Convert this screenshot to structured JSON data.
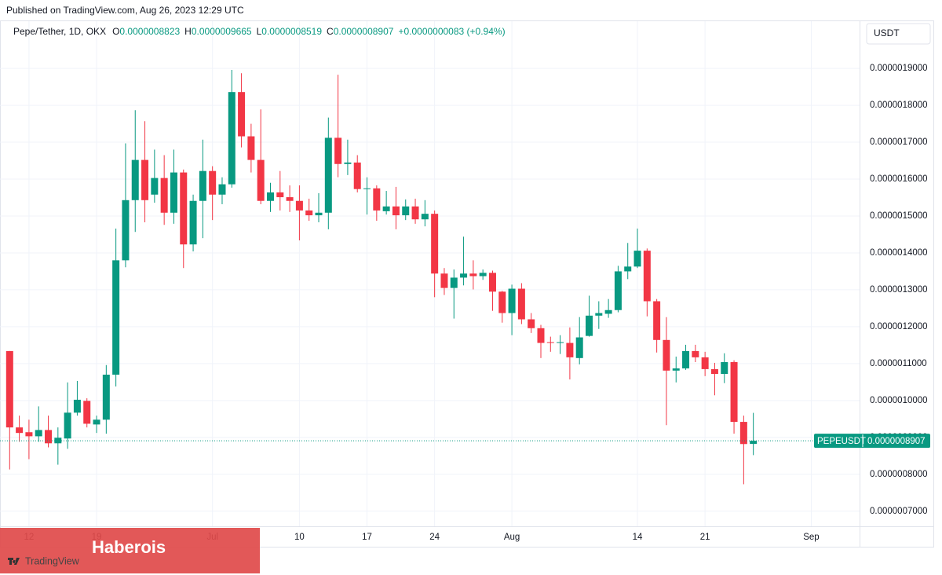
{
  "chart_data": {
    "type": "candlestick",
    "published": "Published on TradingView.com, Aug 26, 2023 12:29 UTC",
    "symbol": "Pepe/Tether, 1D, OKX",
    "ohlc_legend": [
      {
        "key": "O",
        "text": "0.0000008823"
      },
      {
        "key": "H",
        "text": "0.0000009665"
      },
      {
        "key": "L",
        "text": "0.0000008519"
      },
      {
        "key": "C",
        "text": "0.0000008907"
      }
    ],
    "change": "+0.0000000083 (+0.94%)",
    "currency": "USDT",
    "last_price": {
      "symbol": "PEPEUSDT",
      "value": 8.907e-07,
      "label": "0.0000008907"
    },
    "watermark": "Haberois",
    "brand": "TradingView",
    "up_color": "#089981",
    "down_color": "#f23645",
    "grid": true,
    "x": [
      "2023-06-10",
      "2023-06-11",
      "2023-06-12",
      "2023-06-13",
      "2023-06-14",
      "2023-06-15",
      "2023-06-16",
      "2023-06-17",
      "2023-06-18",
      "2023-06-19",
      "2023-06-20",
      "2023-06-21",
      "2023-06-22",
      "2023-06-23",
      "2023-06-24",
      "2023-06-25",
      "2023-06-26",
      "2023-06-27",
      "2023-06-28",
      "2023-06-29",
      "2023-06-30",
      "2023-07-01",
      "2023-07-02",
      "2023-07-03",
      "2023-07-04",
      "2023-07-05",
      "2023-07-06",
      "2023-07-07",
      "2023-07-08",
      "2023-07-09",
      "2023-07-10",
      "2023-07-11",
      "2023-07-12",
      "2023-07-13",
      "2023-07-14",
      "2023-07-15",
      "2023-07-16",
      "2023-07-17",
      "2023-07-18",
      "2023-07-19",
      "2023-07-20",
      "2023-07-21",
      "2023-07-22",
      "2023-07-23",
      "2023-07-24",
      "2023-07-25",
      "2023-07-26",
      "2023-07-27",
      "2023-07-28",
      "2023-07-29",
      "2023-07-30",
      "2023-07-31",
      "2023-08-01",
      "2023-08-02",
      "2023-08-03",
      "2023-08-04",
      "2023-08-05",
      "2023-08-06",
      "2023-08-07",
      "2023-08-08",
      "2023-08-09",
      "2023-08-10",
      "2023-08-11",
      "2023-08-12",
      "2023-08-13",
      "2023-08-14",
      "2023-08-15",
      "2023-08-16",
      "2023-08-17",
      "2023-08-18",
      "2023-08-19",
      "2023-08-20",
      "2023-08-21",
      "2023-08-22",
      "2023-08-23",
      "2023-08-24",
      "2023-08-25",
      "2023-08-26"
    ],
    "open": [
      1.134e-06,
      9.27e-07,
      9.14e-07,
      9.03e-07,
      9.2e-07,
      8.84e-07,
      8.97e-07,
      9.67e-07,
      9.99e-07,
      9.35e-07,
      9.48e-07,
      1.07e-06,
      1.38e-06,
      1.543e-06,
      1.652e-06,
      1.558e-06,
      1.603e-06,
      1.509e-06,
      1.618e-06,
      1.423e-06,
      1.541e-06,
      1.622e-06,
      1.558e-06,
      1.586e-06,
      1.836e-06,
      1.716e-06,
      1.652e-06,
      1.541e-06,
      1.564e-06,
      1.551e-06,
      1.541e-06,
      1.515e-06,
      1.502e-06,
      1.509e-06,
      1.712e-06,
      1.641e-06,
      1.645e-06,
      1.573e-06,
      1.575e-06,
      1.513e-06,
      1.526e-06,
      1.502e-06,
      1.526e-06,
      1.491e-06,
      1.506e-06,
      1.344e-06,
      1.305e-06,
      1.333e-06,
      1.344e-06,
      1.337e-06,
      1.346e-06,
      1.295e-06,
      1.237e-06,
      1.303e-06,
      1.22e-06,
      1.196e-06,
      1.158e-06,
      1.156e-06,
      1.156e-06,
      1.115e-06,
      1.175e-06,
      1.23e-06,
      1.235e-06,
      1.245e-06,
      1.35e-06,
      1.363e-06,
      1.406e-06,
      1.269e-06,
      1.164e-06,
      1.081e-06,
      1.087e-06,
      1.134e-06,
      1.117e-06,
      1.085e-06,
      1.072e-06,
      1.104e-06,
      9.42e-07,
      8.823e-07
    ],
    "high": [
      1.134e-06,
      9.59e-07,
      9.48e-07,
      9.84e-07,
      9.59e-07,
      9.27e-07,
      1.049e-06,
      1.053e-06,
      1.006e-06,
      9.59e-07,
      1.096e-06,
      1.466e-06,
      1.697e-06,
      1.787e-06,
      1.757e-06,
      1.68e-06,
      1.665e-06,
      1.68e-06,
      1.626e-06,
      1.558e-06,
      1.707e-06,
      1.635e-06,
      1.605e-06,
      1.896e-06,
      1.887e-06,
      1.75e-06,
      1.789e-06,
      1.59e-06,
      1.622e-06,
      1.583e-06,
      1.583e-06,
      1.547e-06,
      1.562e-06,
      1.767e-06,
      1.883e-06,
      1.707e-06,
      1.665e-06,
      1.605e-06,
      1.583e-06,
      1.568e-06,
      1.579e-06,
      1.545e-06,
      1.547e-06,
      1.543e-06,
      1.515e-06,
      1.359e-06,
      1.355e-06,
      1.444e-06,
      1.38e-06,
      1.355e-06,
      1.352e-06,
      1.297e-06,
      1.314e-06,
      1.318e-06,
      1.237e-06,
      1.205e-06,
      1.173e-06,
      1.177e-06,
      1.198e-06,
      1.226e-06,
      1.284e-06,
      1.269e-06,
      1.275e-06,
      1.365e-06,
      1.427e-06,
      1.466e-06,
      1.412e-06,
      1.275e-06,
      1.226e-06,
      1.119e-06,
      1.151e-06,
      1.151e-06,
      1.132e-06,
      1.102e-06,
      1.128e-06,
      1.109e-06,
      9.59e-07,
      9.665e-07
    ],
    "low": [
      8.13e-07,
      8.88e-07,
      8.41e-07,
      8.88e-07,
      8.73e-07,
      8.26e-07,
      8.69e-07,
      9.59e-07,
      9.27e-07,
      9.12e-07,
      9.1e-07,
      1.038e-06,
      1.361e-06,
      1.457e-06,
      1.483e-06,
      1.536e-06,
      1.476e-06,
      1.479e-06,
      1.359e-06,
      1.404e-06,
      1.44e-06,
      1.489e-06,
      1.532e-06,
      1.577e-06,
      1.686e-06,
      1.618e-06,
      1.532e-06,
      1.511e-06,
      1.515e-06,
      1.511e-06,
      1.434e-06,
      1.487e-06,
      1.483e-06,
      1.464e-06,
      1.605e-06,
      1.611e-06,
      1.564e-06,
      1.504e-06,
      1.487e-06,
      1.504e-06,
      1.464e-06,
      1.489e-06,
      1.479e-06,
      1.472e-06,
      1.28e-06,
      1.286e-06,
      1.222e-06,
      1.312e-06,
      1.301e-06,
      1.327e-06,
      1.243e-06,
      1.211e-06,
      1.177e-06,
      1.207e-06,
      1.183e-06,
      1.115e-06,
      1.132e-06,
      1.126e-06,
      1.057e-06,
      1.098e-06,
      1.173e-06,
      1.194e-06,
      1.224e-06,
      1.239e-06,
      1.329e-06,
      1.359e-06,
      1.228e-06,
      1.13e-06,
      9.33e-07,
      1.049e-06,
      1.083e-06,
      1.104e-06,
      1.066e-06,
      1.014e-06,
      1.047e-06,
      9.1e-07,
      7.73e-07,
      8.519e-07
    ],
    "close": [
      9.27e-07,
      9.12e-07,
      9.03e-07,
      9.2e-07,
      8.84e-07,
      8.99e-07,
      9.67e-07,
      1.002e-06,
      9.37e-07,
      9.48e-07,
      1.07e-06,
      1.38e-06,
      1.543e-06,
      1.652e-06,
      1.543e-06,
      1.603e-06,
      1.509e-06,
      1.618e-06,
      1.423e-06,
      1.541e-06,
      1.622e-06,
      1.558e-06,
      1.586e-06,
      1.836e-06,
      1.716e-06,
      1.652e-06,
      1.541e-06,
      1.564e-06,
      1.551e-06,
      1.541e-06,
      1.515e-06,
      1.502e-06,
      1.509e-06,
      1.712e-06,
      1.641e-06,
      1.645e-06,
      1.573e-06,
      1.575e-06,
      1.515e-06,
      1.526e-06,
      1.502e-06,
      1.526e-06,
      1.491e-06,
      1.506e-06,
      1.344e-06,
      1.305e-06,
      1.333e-06,
      1.344e-06,
      1.337e-06,
      1.346e-06,
      1.295e-06,
      1.237e-06,
      1.303e-06,
      1.22e-06,
      1.196e-06,
      1.156e-06,
      1.156e-06,
      1.158e-06,
      1.117e-06,
      1.171e-06,
      1.23e-06,
      1.237e-06,
      1.245e-06,
      1.35e-06,
      1.363e-06,
      1.406e-06,
      1.269e-06,
      1.164e-06,
      1.081e-06,
      1.087e-06,
      1.134e-06,
      1.117e-06,
      1.085e-06,
      1.072e-06,
      1.104e-06,
      9.42e-07,
      8.82e-07,
      8.907e-07
    ],
    "xlim": [
      "2023-06-09",
      "2023-09-06"
    ],
    "xticks": [
      {
        "value": "2023-06-12",
        "label": "12"
      },
      {
        "value": "2023-06-19",
        "label": "19"
      },
      {
        "value": "2023-07-01",
        "label": "Jul"
      },
      {
        "value": "2023-07-10",
        "label": "10"
      },
      {
        "value": "2023-07-17",
        "label": "17"
      },
      {
        "value": "2023-07-24",
        "label": "24"
      },
      {
        "value": "2023-08-01",
        "label": "Aug"
      },
      {
        "value": "2023-08-14",
        "label": "14"
      },
      {
        "value": "2023-08-21",
        "label": "21"
      },
      {
        "value": "2023-09-01",
        "label": "Sep"
      }
    ],
    "ylim": [
      6.59e-07,
      2.028e-06
    ],
    "yticks": [
      {
        "value": 1.9e-06,
        "label": "0.0000019000"
      },
      {
        "value": 1.8e-06,
        "label": "0.0000018000"
      },
      {
        "value": 1.7e-06,
        "label": "0.0000017000"
      },
      {
        "value": 1.6e-06,
        "label": "0.0000016000"
      },
      {
        "value": 1.5e-06,
        "label": "0.0000015000"
      },
      {
        "value": 1.4e-06,
        "label": "0.0000014000"
      },
      {
        "value": 1.3e-06,
        "label": "0.0000013000"
      },
      {
        "value": 1.2e-06,
        "label": "0.0000012000"
      },
      {
        "value": 1.1e-06,
        "label": "0.0000011000"
      },
      {
        "value": 1e-06,
        "label": "0.0000010000"
      },
      {
        "value": 9e-07,
        "label": "0.0000009000"
      },
      {
        "value": 8e-07,
        "label": "0.0000008000"
      },
      {
        "value": 7e-07,
        "label": "0.0000007000"
      }
    ]
  }
}
